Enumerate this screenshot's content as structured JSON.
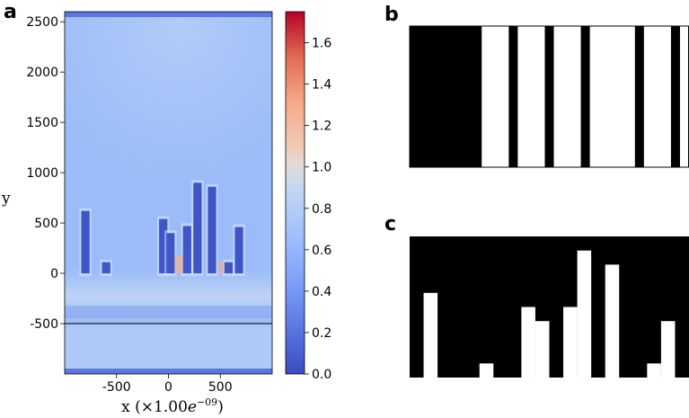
{
  "panel_labels": [
    "a",
    "b",
    "c"
  ],
  "chart_data": [
    {
      "type": "heatmap",
      "panel": "a",
      "title": "",
      "xlabel": "x (×1.00e−09)",
      "xlabel_base": "x (×1.00",
      "xlabel_exp_e": "e",
      "xlabel_exp": "−09",
      "xlabel_close": ")",
      "ylabel": "y",
      "xlim": [
        -1000,
        1000
      ],
      "ylim": [
        -1000,
        2600
      ],
      "xticks": [
        -500,
        0,
        500
      ],
      "xtick_labels": [
        "-500",
        "0",
        "500"
      ],
      "yticks": [
        -500,
        0,
        500,
        1000,
        1500,
        2000,
        2500
      ],
      "ytick_labels": [
        "-500",
        "0",
        "500",
        "1000",
        "1500",
        "2000",
        "2500"
      ],
      "horizontal_line_y": -500,
      "pillars": [
        {
          "x0": -840,
          "x1": -760,
          "top": 620
        },
        {
          "x0": -640,
          "x1": -560,
          "top": 110
        },
        {
          "x0": -90,
          "x1": -10,
          "top": 540
        },
        {
          "x0": -20,
          "x1": 60,
          "top": 400
        },
        {
          "x0": 140,
          "x1": 220,
          "top": 470
        },
        {
          "x0": 240,
          "x1": 320,
          "top": 900
        },
        {
          "x0": 380,
          "x1": 460,
          "top": 860
        },
        {
          "x0": 540,
          "x1": 620,
          "top": 110
        },
        {
          "x0": 640,
          "x1": 720,
          "top": 460
        }
      ],
      "colorbar": {
        "min": 0.0,
        "max": 1.75,
        "ticks": [
          0.0,
          0.2,
          0.4,
          0.6,
          0.8,
          1.0,
          1.2,
          1.4,
          1.6
        ],
        "tick_labels": [
          "0.0",
          "0.2",
          "0.4",
          "0.6",
          "0.8",
          "1.0",
          "1.2",
          "1.4",
          "1.6"
        ],
        "colormap": "coolwarm"
      }
    },
    {
      "type": "heatmap",
      "panel": "b",
      "description_colors": {
        "on": "#ffffff",
        "off": "#000000"
      },
      "ncols": 20,
      "columns": [
        0,
        0,
        0,
        0,
        0,
        0,
        0,
        0,
        1,
        1,
        1,
        0,
        1,
        1,
        1,
        0,
        1,
        1,
        1,
        0,
        1,
        1,
        1,
        1,
        1,
        0,
        1,
        1,
        1,
        0,
        1
      ],
      "column_units": 31
    },
    {
      "type": "heatmap",
      "panel": "c",
      "ncols": 20,
      "nrows": 10,
      "column_heights": [
        0,
        6,
        0,
        0,
        0,
        1,
        0,
        0,
        5,
        4,
        0,
        5,
        9,
        0,
        8,
        0,
        0,
        1,
        4,
        0
      ]
    }
  ]
}
